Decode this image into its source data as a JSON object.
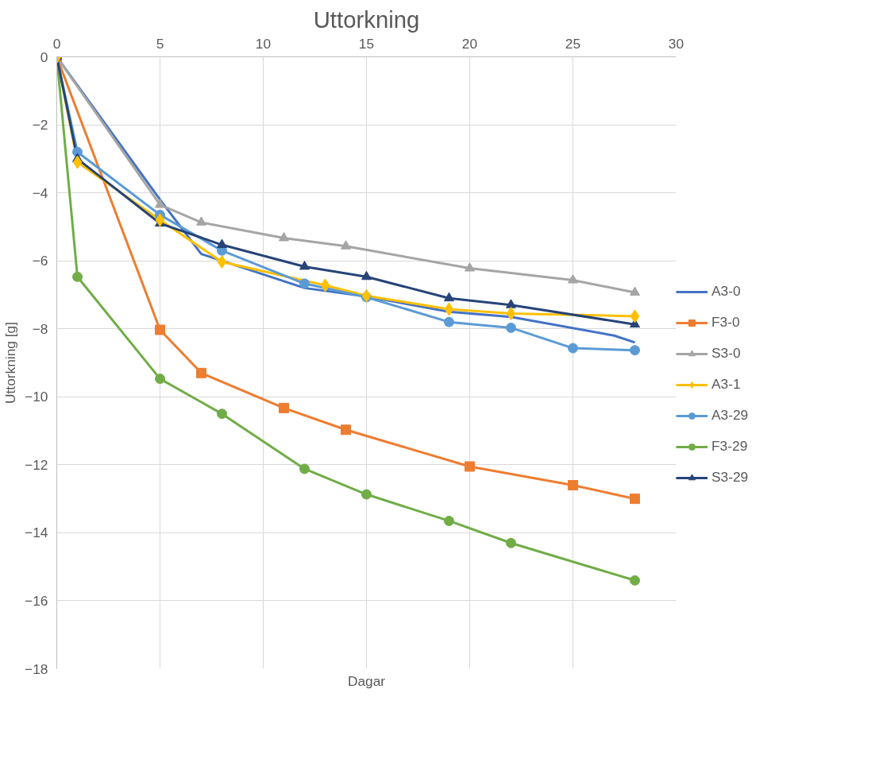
{
  "chart_data": {
    "type": "line",
    "title": "Uttorkning",
    "xlabel": "Dagar",
    "ylabel": "Uttorkning [g]",
    "xlim": [
      0,
      30
    ],
    "ylim": [
      -18,
      0
    ],
    "xticks": [
      0,
      5,
      10,
      15,
      20,
      25,
      30
    ],
    "yticks": [
      0,
      -2,
      -4,
      -6,
      -8,
      -10,
      -12,
      -14,
      -16,
      -18
    ],
    "grid": true,
    "legend": "right",
    "line_style": "solid",
    "series": [
      {
        "name": "A3-0",
        "color": "#4472c4",
        "marker": "none",
        "x": [
          0,
          5,
          7,
          12,
          15,
          19,
          22,
          27,
          28
        ],
        "values": [
          0,
          -4.2,
          -5.8,
          -6.8,
          -7.05,
          -7.5,
          -7.65,
          -8.2,
          -8.4
        ]
      },
      {
        "name": "F3-0",
        "color": "#ed7d31",
        "marker": "square",
        "x": [
          0,
          5,
          7,
          11,
          14,
          20,
          25,
          28
        ],
        "values": [
          0,
          -8.03,
          -9.3,
          -10.33,
          -10.97,
          -12.05,
          -12.6,
          -13.0
        ]
      },
      {
        "name": "S3-0",
        "color": "#a5a5a5",
        "marker": "triangle",
        "x": [
          0,
          5,
          7,
          11,
          14,
          20,
          25,
          28
        ],
        "values": [
          0,
          -4.35,
          -4.87,
          -5.33,
          -5.57,
          -6.22,
          -6.57,
          -6.93
        ]
      },
      {
        "name": "A3-1",
        "color": "#ffc000",
        "marker": "diamond",
        "x": [
          0,
          1,
          5,
          8,
          13,
          15,
          19,
          22,
          28
        ],
        "values": [
          0,
          -3.1,
          -4.8,
          -6.03,
          -6.72,
          -7.03,
          -7.42,
          -7.55,
          -7.63
        ]
      },
      {
        "name": "A3-29",
        "color": "#5b9bd5",
        "marker": "circle",
        "x": [
          0,
          1,
          5,
          8,
          12,
          15,
          19,
          22,
          25,
          28
        ],
        "values": [
          0,
          -2.8,
          -4.65,
          -5.7,
          -6.67,
          -7.07,
          -7.8,
          -7.97,
          -8.57,
          -8.63
        ]
      },
      {
        "name": "F3-29",
        "color": "#70ad47",
        "marker": "circle",
        "x": [
          0,
          1,
          5,
          8,
          12,
          15,
          19,
          22,
          28
        ],
        "values": [
          0,
          -6.47,
          -9.47,
          -10.5,
          -12.12,
          -12.87,
          -13.65,
          -14.3,
          -15.4
        ]
      },
      {
        "name": "S3-29",
        "color": "#264478",
        "marker": "triangle",
        "x": [
          0,
          1,
          5,
          8,
          12,
          15,
          19,
          22,
          28
        ],
        "values": [
          0,
          -3.0,
          -4.9,
          -5.53,
          -6.17,
          -6.47,
          -7.1,
          -7.3,
          -7.87
        ]
      }
    ]
  }
}
